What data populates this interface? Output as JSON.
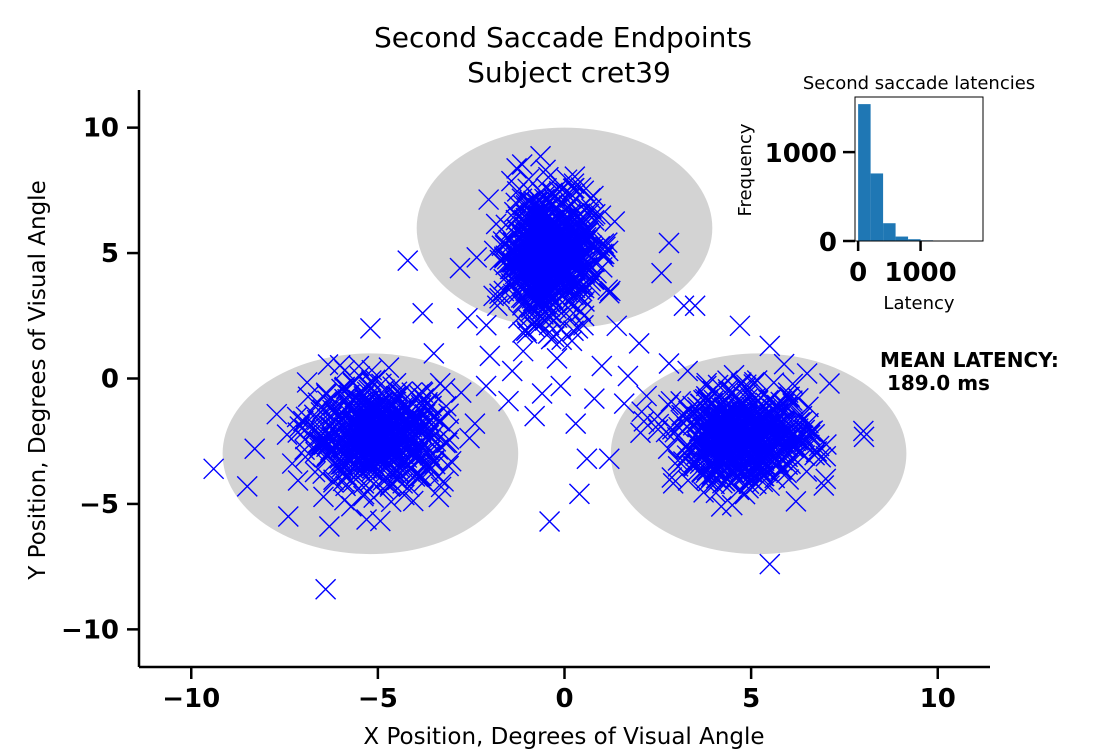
{
  "chart_data": [
    {
      "type": "scatter",
      "title": "Second Saccade Endpoints",
      "subtitle": "Subject cret39",
      "xlabel": "X Position, Degrees of Visual Angle",
      "ylabel": "Y Position, Degrees of Visual Angle",
      "xlim": [
        -11.4,
        11.4
      ],
      "ylim": [
        -11.5,
        11.5
      ],
      "xticks": [
        -10,
        -5,
        0,
        5,
        10
      ],
      "yticks": [
        -10,
        -5,
        0,
        5,
        10
      ],
      "xtick_labels": [
        "−10",
        "−5",
        "0",
        "5",
        "10"
      ],
      "ytick_labels": [
        "−10",
        "−5",
        "0",
        "5",
        "10"
      ],
      "grid": false,
      "marker": "x",
      "marker_color": "#0000ff",
      "target_color": "#d3d3d3",
      "targets": [
        {
          "cx": 0,
          "cy": 6,
          "rx": 4,
          "ry": 4
        },
        {
          "cx": -5.2,
          "cy": -3,
          "rx": 4,
          "ry": 4
        },
        {
          "cx": 5.2,
          "cy": -3,
          "rx": 4,
          "ry": 4
        }
      ],
      "clusters": [
        {
          "cx": -0.4,
          "cy": 5.0,
          "sx": 0.6,
          "sy": 1.3,
          "n": 700
        },
        {
          "cx": -5.0,
          "cy": -2.3,
          "sx": 0.9,
          "sy": 1.0,
          "n": 600
        },
        {
          "cx": 4.8,
          "cy": -2.4,
          "sx": 0.9,
          "sy": 0.9,
          "n": 600
        }
      ],
      "points": [
        [
          -9.4,
          -3.6
        ],
        [
          -8.3,
          -2.8
        ],
        [
          -8.5,
          -4.3
        ],
        [
          -7.4,
          -5.5
        ],
        [
          -6.4,
          -8.4
        ],
        [
          -6.3,
          -5.9
        ],
        [
          -5.2,
          2.0
        ],
        [
          -4.2,
          4.7
        ],
        [
          -3.8,
          2.6
        ],
        [
          -2.8,
          4.4
        ],
        [
          -2.6,
          2.4
        ],
        [
          -2.0,
          0.9
        ],
        [
          -1.5,
          -0.9
        ],
        [
          -0.8,
          -1.5
        ],
        [
          -0.4,
          -5.7
        ],
        [
          0.4,
          -4.6
        ],
        [
          0.6,
          -3.2
        ],
        [
          1.2,
          -3.2
        ],
        [
          1.6,
          -1.0
        ],
        [
          2.0,
          1.4
        ],
        [
          2.6,
          4.2
        ],
        [
          2.8,
          0.6
        ],
        [
          3.2,
          2.9
        ],
        [
          3.5,
          2.9
        ],
        [
          2.8,
          5.4
        ],
        [
          4.7,
          2.1
        ],
        [
          5.5,
          1.3
        ],
        [
          6.5,
          0.2
        ],
        [
          7.1,
          -0.2
        ],
        [
          5.5,
          -7.4
        ],
        [
          7.0,
          -3.1
        ],
        [
          7.0,
          -4.0
        ],
        [
          6.2,
          -4.9
        ],
        [
          4.2,
          -5.1
        ],
        [
          -1.4,
          0.3
        ],
        [
          1.0,
          0.5
        ],
        [
          -0.2,
          0.8
        ],
        [
          0.3,
          -1.8
        ],
        [
          -1.0,
          1.8
        ],
        [
          1.4,
          2.1
        ],
        [
          -3.2,
          -0.4
        ],
        [
          -2.4,
          -1.8
        ],
        [
          3.8,
          -0.3
        ],
        [
          2.2,
          -0.7
        ],
        [
          -1.8,
          2.9
        ],
        [
          1.2,
          3.4
        ],
        [
          -0.1,
          -0.3
        ],
        [
          0.8,
          -0.8
        ],
        [
          -3.5,
          1.0
        ],
        [
          3.3,
          0.3
        ],
        [
          0.2,
          1.5
        ],
        [
          -0.6,
          -0.6
        ],
        [
          1.7,
          0.1
        ],
        [
          -2.1,
          -0.3
        ],
        [
          2.5,
          -1.5
        ]
      ]
    },
    {
      "type": "bar",
      "title": "Second saccade latencies",
      "xlabel": "Latency",
      "ylabel": "Frequency",
      "bar_color": "#1f77b4",
      "bin_width": 200,
      "bins": [
        0,
        200,
        400,
        600,
        800,
        1000,
        1200,
        1400,
        1600,
        1800
      ],
      "values": [
        1540,
        760,
        200,
        50,
        20,
        8,
        3,
        1,
        0,
        0
      ],
      "xlim": [
        -50,
        2000
      ],
      "ylim": [
        0,
        1620
      ],
      "xticks": [
        0,
        1000
      ],
      "yticks": [
        0,
        1000
      ],
      "xtick_labels": [
        "0",
        "1000"
      ],
      "ytick_labels": [
        "0",
        "1000"
      ]
    }
  ],
  "annotation": {
    "line1": "MEAN LATENCY:",
    "line2": " 189.0 ms"
  }
}
